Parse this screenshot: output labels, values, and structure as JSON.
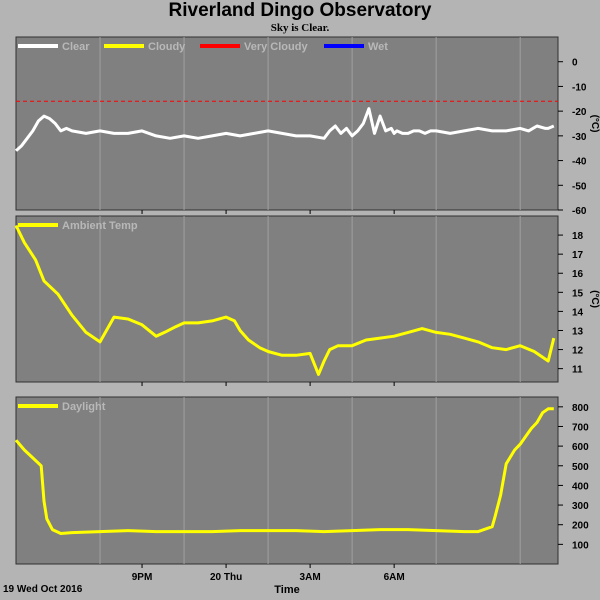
{
  "title": "Riverland Dingo Observatory",
  "subtitle": "Sky is Clear.",
  "x_axis": {
    "ticks": [
      "9PM",
      "20 Thu",
      "3AM",
      "6AM"
    ],
    "start_label": "19 Wed Oct 2016",
    "label": "Time"
  },
  "colors": {
    "plot_bg": "#808080",
    "grid": "#a0a0a0",
    "page_bg": "#b4b4b4"
  },
  "chart_data": [
    {
      "type": "line",
      "unit": "(°C)",
      "ylim": [
        -60,
        10
      ],
      "yticks": [
        0,
        -10,
        -20,
        -30,
        -40,
        -50,
        -60
      ],
      "legend": [
        {
          "name": "Clear",
          "color": "#ffffff"
        },
        {
          "name": "Cloudy",
          "color": "#ffff00"
        },
        {
          "name": "Very Cloudy",
          "color": "#ff0000"
        },
        {
          "name": "Wet",
          "color": "#0000ff"
        }
      ],
      "thresholds": [
        {
          "value": -16,
          "color": "#ff0000",
          "style": "dashed"
        }
      ],
      "series": [
        {
          "color": "#ffffff",
          "x": [
            0,
            0.2,
            0.4,
            0.6,
            0.8,
            1,
            1.2,
            1.4,
            1.6,
            1.8,
            2,
            2.5,
            3,
            3.5,
            4,
            4.5,
            5,
            5.5,
            6,
            6.5,
            7,
            7.5,
            8,
            8.5,
            9,
            9.5,
            10,
            10.5,
            11,
            11.2,
            11.4,
            11.6,
            11.8,
            12,
            12.2,
            12.4,
            12.6,
            12.8,
            13,
            13.2,
            13.4,
            13.5,
            13.6,
            13.8,
            14,
            14.2,
            14.4,
            14.6,
            14.8,
            15,
            15.5,
            16,
            16.5,
            17,
            17.5,
            18,
            18.3,
            18.6,
            18.9,
            19,
            19.2
          ],
          "y": [
            -36,
            -34,
            -31,
            -28,
            -24,
            -22,
            -23,
            -25,
            -28,
            -27,
            -28,
            -29,
            -28,
            -29,
            -29,
            -28,
            -30,
            -31,
            -30,
            -31,
            -30,
            -29,
            -30,
            -29,
            -28,
            -29,
            -30,
            -30,
            -31,
            -28,
            -26,
            -29,
            -27,
            -30,
            -28,
            -25,
            -19,
            -29,
            -22,
            -28,
            -27,
            -29,
            -28,
            -29,
            -29,
            -28,
            -28,
            -29,
            -28,
            -28,
            -29,
            -28,
            -27,
            -28,
            -28,
            -27,
            -28,
            -26,
            -27,
            -27,
            -26
          ]
        }
      ]
    },
    {
      "type": "line",
      "unit": "(°C)",
      "ylim": [
        10.3,
        19
      ],
      "yticks": [
        18,
        17,
        16,
        15,
        14,
        13,
        12,
        11
      ],
      "legend": [
        {
          "name": "Ambient Temp",
          "color": "#ffff00"
        }
      ],
      "series": [
        {
          "color": "#ffff00",
          "x": [
            0,
            0.3,
            0.7,
            1,
            1.5,
            2,
            2.5,
            3,
            3.5,
            4,
            4.5,
            5,
            5.3,
            5.7,
            6,
            6.5,
            7,
            7.5,
            7.8,
            8,
            8.3,
            8.7,
            9,
            9.5,
            10,
            10.5,
            10.8,
            11,
            11.2,
            11.5,
            12,
            12.5,
            13,
            13.5,
            14,
            14.5,
            15,
            15.5,
            16,
            16.5,
            17,
            17.5,
            18,
            18.5,
            19,
            19.2
          ],
          "y": [
            18.5,
            17.6,
            16.7,
            15.6,
            14.9,
            13.8,
            12.9,
            12.4,
            13.7,
            13.6,
            13.3,
            12.7,
            12.9,
            13.2,
            13.4,
            13.4,
            13.5,
            13.7,
            13.5,
            13.0,
            12.5,
            12.1,
            11.9,
            11.7,
            11.7,
            11.8,
            10.7,
            11.4,
            12.0,
            12.2,
            12.2,
            12.5,
            12.6,
            12.7,
            12.9,
            13.1,
            12.9,
            12.8,
            12.6,
            12.4,
            12.1,
            12.0,
            12.2,
            11.9,
            11.4,
            12.6
          ]
        }
      ]
    },
    {
      "type": "line",
      "ylim": [
        0,
        850
      ],
      "yticks": [
        800,
        700,
        600,
        500,
        400,
        300,
        200,
        100
      ],
      "legend": [
        {
          "name": "Daylight",
          "color": "#ffff00"
        }
      ],
      "series": [
        {
          "color": "#ffff00",
          "x": [
            0,
            0.3,
            0.6,
            0.9,
            1,
            1.1,
            1.3,
            1.6,
            2,
            3,
            4,
            5,
            6,
            7,
            8,
            9,
            10,
            11,
            12,
            13,
            14,
            15,
            16,
            16.5,
            17,
            17.1,
            17.3,
            17.5,
            17.8,
            18,
            18.2,
            18.4,
            18.6,
            18.8,
            19,
            19.2
          ],
          "y": [
            630,
            580,
            540,
            500,
            320,
            230,
            175,
            155,
            160,
            165,
            170,
            165,
            165,
            165,
            170,
            170,
            170,
            165,
            170,
            175,
            175,
            170,
            165,
            165,
            190,
            240,
            350,
            510,
            580,
            610,
            650,
            690,
            720,
            770,
            790,
            790
          ]
        }
      ]
    }
  ]
}
